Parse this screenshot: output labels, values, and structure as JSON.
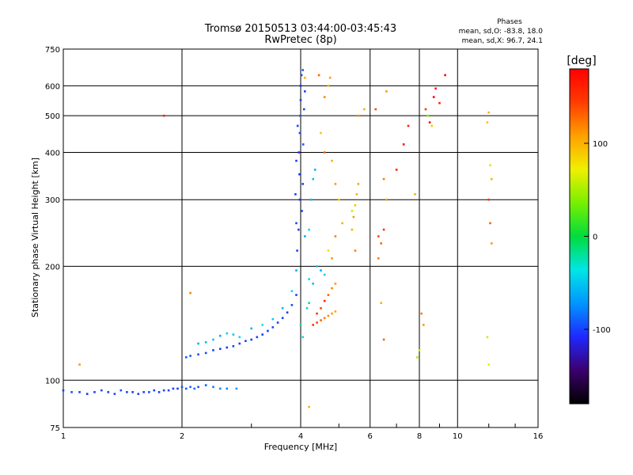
{
  "chart_data": {
    "type": "scatter",
    "title": "Tromsø 20150513 03:44:00-03:45:43",
    "subtitle": "RwPretec (8p)",
    "xlabel": "Frequency [MHz]",
    "ylabel": "Stationary phase Virtual Height [km]",
    "x_scale": "log",
    "y_scale": "log",
    "xlim": [
      1,
      16
    ],
    "ylim": [
      75,
      750
    ],
    "x_ticks": [
      1,
      2,
      4,
      6,
      8,
      10,
      16
    ],
    "y_ticks": [
      75,
      100,
      200,
      300,
      400,
      500,
      600,
      750
    ],
    "grid": true,
    "stats": {
      "heading": "Phases",
      "line1": "mean, sd,O: -83.8, 18.0",
      "line2": "mean, sd,X:  96.7, 24.1"
    },
    "colorbar": {
      "label": "[deg]",
      "ticks": [
        {
          "value": 100,
          "label": "100"
        },
        {
          "value": 0,
          "label": "0"
        },
        {
          "value": -100,
          "label": "-100"
        }
      ],
      "range": [
        -180,
        180
      ],
      "colors": [
        "#000000",
        "#3c006e",
        "#1e28ff",
        "#0096ff",
        "#00e6e6",
        "#00dc3c",
        "#78f000",
        "#f0f000",
        "#ffa000",
        "#ff3c00",
        "#ff0000"
      ]
    },
    "series": [
      {
        "values": [
          [
            1.0,
            94,
            -100
          ],
          [
            1.05,
            93,
            -95
          ],
          [
            1.1,
            93,
            -100
          ],
          [
            1.15,
            92,
            -105
          ],
          [
            1.2,
            93,
            -100
          ],
          [
            1.25,
            94,
            -98
          ],
          [
            1.3,
            93,
            -102
          ],
          [
            1.35,
            92,
            -100
          ],
          [
            1.4,
            94,
            -96
          ],
          [
            1.45,
            93,
            -100
          ],
          [
            1.5,
            93,
            -100
          ],
          [
            1.55,
            92,
            -104
          ],
          [
            1.6,
            93,
            -100
          ],
          [
            1.65,
            93,
            -98
          ],
          [
            1.7,
            94,
            -100
          ],
          [
            1.75,
            93,
            -100
          ],
          [
            1.8,
            94,
            -97
          ],
          [
            1.85,
            94,
            -100
          ],
          [
            1.9,
            95,
            -100
          ],
          [
            1.95,
            95,
            -102
          ],
          [
            2.0,
            96,
            -95
          ],
          [
            2.05,
            95,
            -90
          ],
          [
            2.1,
            96,
            -88
          ],
          [
            2.15,
            95,
            -85
          ],
          [
            2.2,
            96,
            -92
          ],
          [
            2.3,
            97,
            -90
          ],
          [
            2.4,
            96,
            -80
          ],
          [
            2.5,
            95,
            -75
          ],
          [
            2.6,
            95,
            -78
          ],
          [
            2.75,
            95,
            -70
          ],
          [
            2.05,
            115,
            -90
          ],
          [
            2.1,
            116,
            -92
          ],
          [
            2.2,
            117,
            -95
          ],
          [
            2.3,
            118,
            -98
          ],
          [
            2.4,
            120,
            -100
          ],
          [
            2.5,
            121,
            -100
          ],
          [
            2.6,
            122,
            -102
          ],
          [
            2.7,
            123,
            -100
          ],
          [
            2.8,
            125,
            -100
          ],
          [
            2.9,
            127,
            -98
          ],
          [
            3.0,
            128,
            -100
          ],
          [
            3.1,
            130,
            -100
          ],
          [
            3.2,
            132,
            -102
          ],
          [
            3.3,
            135,
            -100
          ],
          [
            3.4,
            138,
            -98
          ],
          [
            3.5,
            142,
            -100
          ],
          [
            3.6,
            146,
            -100
          ],
          [
            3.7,
            151,
            -100
          ],
          [
            3.8,
            158,
            -95
          ],
          [
            3.9,
            168,
            -100
          ],
          [
            2.2,
            125,
            -60
          ],
          [
            2.3,
            126,
            -55
          ],
          [
            2.4,
            128,
            -50
          ],
          [
            2.5,
            131,
            -60
          ],
          [
            2.6,
            133,
            -45
          ],
          [
            2.7,
            132,
            -50
          ],
          [
            2.8,
            130,
            -40
          ],
          [
            3.0,
            137,
            -60
          ],
          [
            3.2,
            140,
            -35
          ],
          [
            3.4,
            145,
            -45
          ],
          [
            3.6,
            155,
            -55
          ],
          [
            3.8,
            172,
            -40
          ],
          [
            3.9,
            195,
            -60
          ],
          [
            3.95,
            250,
            -100
          ],
          [
            3.98,
            300,
            -105
          ],
          [
            3.97,
            350,
            -100
          ],
          [
            3.96,
            400,
            -110
          ],
          [
            3.98,
            450,
            -100
          ],
          [
            3.99,
            500,
            -95
          ],
          [
            4.0,
            550,
            -100
          ],
          [
            4.0,
            600,
            -105
          ],
          [
            4.02,
            640,
            -100
          ],
          [
            4.05,
            660,
            -90
          ],
          [
            3.92,
            220,
            -100
          ],
          [
            3.9,
            260,
            -98
          ],
          [
            3.88,
            310,
            -102
          ],
          [
            3.9,
            380,
            -100
          ],
          [
            3.93,
            470,
            -98
          ],
          [
            4.03,
            280,
            -95
          ],
          [
            4.05,
            330,
            -100
          ],
          [
            4.06,
            420,
            -92
          ],
          [
            4.08,
            520,
            -98
          ],
          [
            4.1,
            580,
            -100
          ],
          [
            4.1,
            240,
            -60
          ],
          [
            4.2,
            250,
            -40
          ],
          [
            4.25,
            300,
            -55
          ],
          [
            4.3,
            340,
            -50
          ],
          [
            4.35,
            360,
            -60
          ],
          [
            4.4,
            200,
            -50
          ],
          [
            4.5,
            195,
            -60
          ],
          [
            4.6,
            190,
            -45
          ],
          [
            4.2,
            185,
            -40
          ],
          [
            4.3,
            180,
            -55
          ],
          [
            4.15,
            155,
            -30
          ],
          [
            4.2,
            160,
            -20
          ],
          [
            4.0,
            140,
            -25
          ],
          [
            4.05,
            130,
            -30
          ]
        ]
      },
      {
        "values": [
          [
            4.3,
            140,
            150
          ],
          [
            4.4,
            142,
            140
          ],
          [
            4.5,
            144,
            130
          ],
          [
            4.6,
            146,
            120
          ],
          [
            4.7,
            148,
            115
          ],
          [
            4.8,
            150,
            110
          ],
          [
            4.9,
            152,
            105
          ],
          [
            4.4,
            150,
            150
          ],
          [
            4.5,
            155,
            140
          ],
          [
            4.6,
            162,
            160
          ],
          [
            4.7,
            168,
            130
          ],
          [
            4.8,
            175,
            120
          ],
          [
            4.9,
            180,
            110
          ],
          [
            4.6,
            560,
            120
          ],
          [
            4.7,
            600,
            100
          ],
          [
            4.75,
            630,
            110
          ],
          [
            4.5,
            450,
            90
          ],
          [
            4.6,
            400,
            130
          ],
          [
            4.8,
            380,
            100
          ],
          [
            4.9,
            330,
            110
          ],
          [
            5.0,
            300,
            90
          ],
          [
            5.1,
            260,
            100
          ],
          [
            4.9,
            240,
            120
          ],
          [
            4.7,
            220,
            80
          ],
          [
            4.8,
            210,
            110
          ],
          [
            5.4,
            250,
            100
          ],
          [
            5.45,
            270,
            110
          ],
          [
            5.5,
            290,
            90
          ],
          [
            5.55,
            310,
            100
          ],
          [
            5.6,
            330,
            105
          ],
          [
            5.5,
            220,
            120
          ],
          [
            5.6,
            500,
            115
          ],
          [
            5.4,
            280,
            60
          ],
          [
            6.3,
            240,
            140
          ],
          [
            6.4,
            230,
            130
          ],
          [
            6.5,
            250,
            150
          ],
          [
            6.3,
            210,
            120
          ],
          [
            6.2,
            520,
            140
          ],
          [
            6.6,
            300,
            110
          ],
          [
            6.5,
            340,
            120
          ],
          [
            6.4,
            160,
            100
          ],
          [
            6.5,
            128,
            130
          ],
          [
            7.0,
            360,
            160
          ],
          [
            7.3,
            420,
            170
          ],
          [
            7.5,
            470,
            160
          ],
          [
            7.8,
            310,
            100
          ],
          [
            7.9,
            115,
            50
          ],
          [
            8.0,
            120,
            60
          ],
          [
            8.1,
            150,
            120
          ],
          [
            8.2,
            140,
            110
          ],
          [
            8.3,
            520,
            150
          ],
          [
            8.5,
            480,
            170
          ],
          [
            8.7,
            560,
            180
          ],
          [
            9.0,
            540,
            160
          ],
          [
            9.3,
            640,
            180
          ],
          [
            8.8,
            590,
            165
          ],
          [
            8.4,
            500,
            40
          ],
          [
            8.6,
            470,
            90
          ],
          [
            11.9,
            480,
            90
          ],
          [
            12.0,
            510,
            100
          ],
          [
            12.1,
            370,
            80
          ],
          [
            12.2,
            340,
            100
          ],
          [
            12.0,
            300,
            150
          ],
          [
            12.1,
            260,
            130
          ],
          [
            12.2,
            230,
            110
          ],
          [
            11.9,
            130,
            60
          ],
          [
            12.0,
            110,
            70
          ]
        ]
      },
      {
        "values": [
          [
            1.1,
            110,
            110
          ],
          [
            1.8,
            500,
            160
          ],
          [
            2.1,
            170,
            120
          ],
          [
            4.2,
            85,
            100
          ],
          [
            5.8,
            520,
            100
          ],
          [
            4.1,
            630,
            100
          ],
          [
            4.45,
            640,
            130
          ],
          [
            6.6,
            580,
            110
          ]
        ]
      }
    ]
  }
}
